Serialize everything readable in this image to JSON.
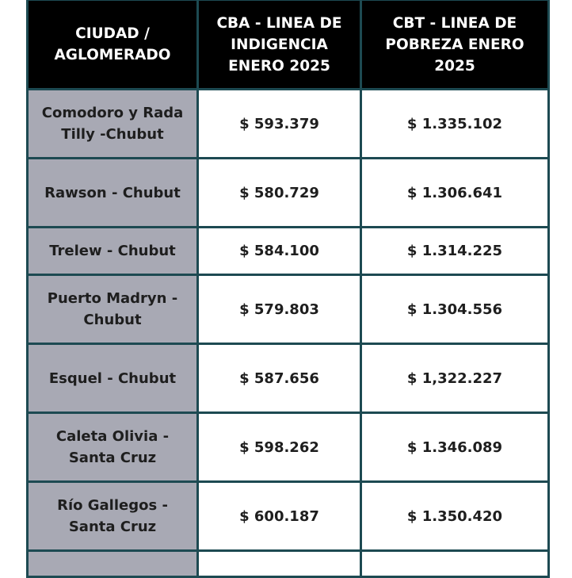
{
  "table": {
    "headers": [
      "CIUDAD / AGLOMERADO",
      "CBA - LINEA DE INDIGENCIA ENERO 2025",
      "CBT - LINEA DE POBREZA ENERO 2025"
    ],
    "rows": [
      {
        "city": "Comodoro y Rada Tilly -Chubut",
        "cba": "$ 593.379",
        "cbt": "$ 1.335.102"
      },
      {
        "city": "Rawson - Chubut",
        "cba": "$ 580.729",
        "cbt": "$ 1.306.641"
      },
      {
        "city": "Trelew - Chubut",
        "cba": "$ 584.100",
        "cbt": "$ 1.314.225"
      },
      {
        "city": "Puerto Madryn - Chubut",
        "cba": "$ 579.803",
        "cbt": "$ 1.304.556"
      },
      {
        "city": "Esquel - Chubut",
        "cba": "$  587.656",
        "cbt": "$ 1,322.227"
      },
      {
        "city": "Caleta Olivia - Santa Cruz",
        "cba": "$ 598.262",
        "cbt": "$ 1.346.089"
      },
      {
        "city": "Río Gallegos - Santa Cruz",
        "cba": "$  600.187",
        "cbt": "$ 1.350.420"
      }
    ]
  },
  "colors": {
    "header_bg": "#000000",
    "header_text": "#ffffff",
    "city_bg": "#a8a9b4",
    "border": "#1d4a52"
  }
}
